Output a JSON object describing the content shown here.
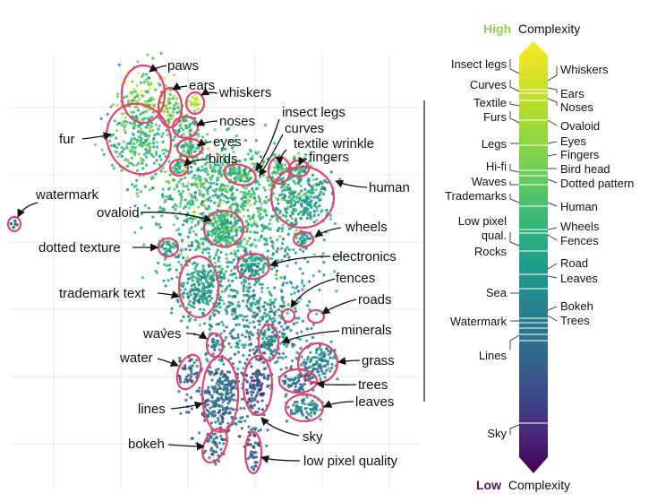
{
  "complexity_scale": {
    "top_title_high": "High",
    "top_title_rest": "Complexity",
    "bottom_title_low": "Low",
    "bottom_title_rest": "Complexity",
    "high_color": "#8fd14f",
    "low_color": "#4a1866",
    "left_labels": [
      "Insect legs",
      "Curves",
      "Textile",
      "Furs",
      "Legs",
      "Hi-fi",
      "Waves",
      "Trademarks",
      "Low pixel",
      "qual.",
      "Rocks",
      "Sea",
      "Watermark",
      "Lines",
      "Sky"
    ],
    "right_labels": [
      "Whiskers",
      "Ears",
      "Noses",
      "Ovaloid",
      "Eyes",
      "Fingers",
      "Bird head",
      "Dotted pattern",
      "Human",
      "Wheels",
      "Fences",
      "Road",
      "Leaves",
      "Bokeh",
      "Trees"
    ]
  },
  "concept_map": {
    "labels": [
      "paws",
      "ears",
      "whiskers",
      "noses",
      "fur",
      "eyes",
      "birds",
      "insect legs",
      "curves",
      "textile wrinkle",
      "fingers",
      "human",
      "watermark",
      "ovaloid",
      "wheels",
      "dotted texture",
      "electronics",
      "fences",
      "trademark text",
      "roads",
      "minerals",
      "waves",
      "water",
      "grass",
      "trees",
      "lines",
      "leaves",
      "sky",
      "bokeh",
      "low pixel quality"
    ],
    "highlight_color": "#e2456f"
  }
}
